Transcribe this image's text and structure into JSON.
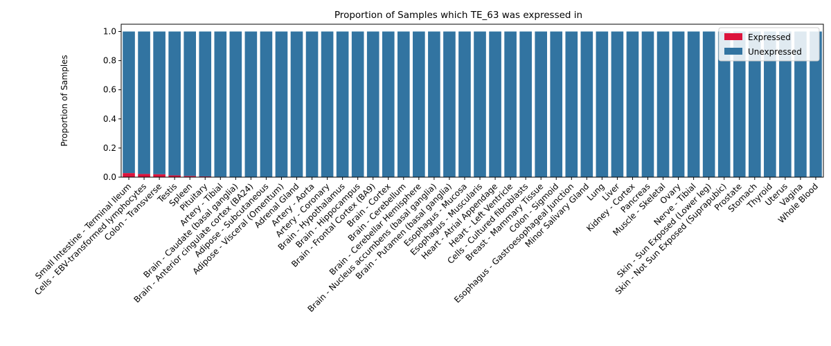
{
  "chart_data": {
    "type": "bar",
    "stacked": true,
    "title": "Proportion of Samples which TE_63 was expressed in",
    "xlabel": "",
    "ylabel": "Proportion of Samples",
    "ylim": [
      0,
      1.05
    ],
    "yticks": [
      "0.0",
      "0.2",
      "0.4",
      "0.6",
      "0.8",
      "1.0"
    ],
    "grid": false,
    "legend_position": "top-right",
    "categories": [
      "Small Intestine - Terminal Ileum",
      "Cells - EBV-transformed lymphocytes",
      "Colon - Transverse",
      "Testis",
      "Spleen",
      "Pituitary",
      "Artery - Tibial",
      "Brain - Caudate (basal ganglia)",
      "Brain - Anterior cingulate cortex (BA24)",
      "Adipose - Subcutaneous",
      "Adipose - Visceral (Omentum)",
      "Adrenal Gland",
      "Artery - Aorta",
      "Artery - Coronary",
      "Brain - Hypothalamus",
      "Brain - Hippocampus",
      "Brain - Frontal Cortex (BA9)",
      "Brain - Cortex",
      "Brain - Cerebellum",
      "Brain - Cerebellar Hemisphere",
      "Brain - Nucleus accumbens (basal ganglia)",
      "Brain - Putamen (basal ganglia)",
      "Esophagus - Mucosa",
      "Esophagus - Muscularis",
      "Heart - Atrial Appendage",
      "Heart - Left Ventricle",
      "Cells - Cultured fibroblasts",
      "Breast - Mammary Tissue",
      "Colon - Sigmoid",
      "Esophagus - Gastroesophageal Junction",
      "Minor Salivary Gland",
      "Lung",
      "Liver",
      "Kidney - Cortex",
      "Pancreas",
      "Muscle - Skeletal",
      "Ovary",
      "Nerve - Tibial",
      "Skin - Sun Exposed (Lower leg)",
      "Skin - Not Sun Exposed (Suprapubic)",
      "Prostate",
      "Stomach",
      "Thyroid",
      "Uterus",
      "Vagina",
      "Whole Blood"
    ],
    "series": [
      {
        "name": "Expressed",
        "color": "#dc143c",
        "values": [
          0.028,
          0.022,
          0.02,
          0.012,
          0.008,
          0.005,
          0.003,
          0,
          0,
          0,
          0,
          0,
          0,
          0,
          0,
          0,
          0,
          0,
          0,
          0,
          0,
          0,
          0,
          0,
          0,
          0,
          0,
          0,
          0,
          0,
          0,
          0,
          0,
          0,
          0,
          0,
          0,
          0,
          0,
          0,
          0,
          0,
          0,
          0,
          0,
          0
        ]
      },
      {
        "name": "Unexpressed",
        "color": "#3274a1",
        "values": [
          0.972,
          0.978,
          0.98,
          0.988,
          0.992,
          0.995,
          0.997,
          1,
          1,
          1,
          1,
          1,
          1,
          1,
          1,
          1,
          1,
          1,
          1,
          1,
          1,
          1,
          1,
          1,
          1,
          1,
          1,
          1,
          1,
          1,
          1,
          1,
          1,
          1,
          1,
          1,
          1,
          1,
          1,
          1,
          1,
          1,
          1,
          1,
          1,
          1
        ]
      }
    ]
  }
}
